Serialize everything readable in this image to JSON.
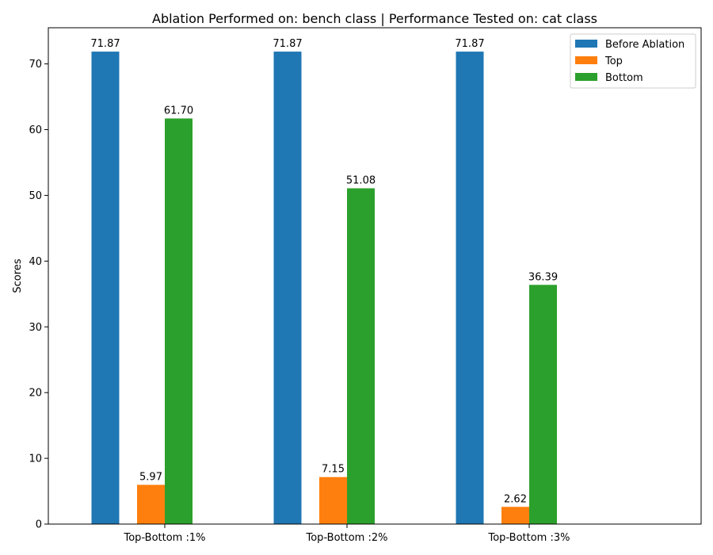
{
  "chart_data": {
    "type": "bar",
    "title": "Ablation Performed on: bench class | Performance Tested on: cat class",
    "xlabel": "",
    "ylabel": "Scores",
    "categories": [
      "Top-Bottom :1%",
      "Top-Bottom :2%",
      "Top-Bottom :3%"
    ],
    "series": [
      {
        "name": "Before Ablation",
        "color": "#1f77b4",
        "values": [
          71.87,
          71.87,
          71.87
        ],
        "labels": [
          "71.87",
          "71.87",
          "71.87"
        ]
      },
      {
        "name": "Top",
        "color": "#ff7f0e",
        "values": [
          5.97,
          7.15,
          2.62
        ],
        "labels": [
          "5.97",
          "7.15",
          "2.62"
        ]
      },
      {
        "name": "Bottom",
        "color": "#2ca02c",
        "values": [
          61.7,
          51.08,
          36.39
        ],
        "labels": [
          "61.70",
          "51.08",
          "36.39"
        ]
      }
    ],
    "ylim": [
      0,
      75.5
    ],
    "yticks": [
      0,
      10,
      20,
      30,
      40,
      50,
      60,
      70
    ],
    "grid": false,
    "legend_position": "top-right"
  }
}
